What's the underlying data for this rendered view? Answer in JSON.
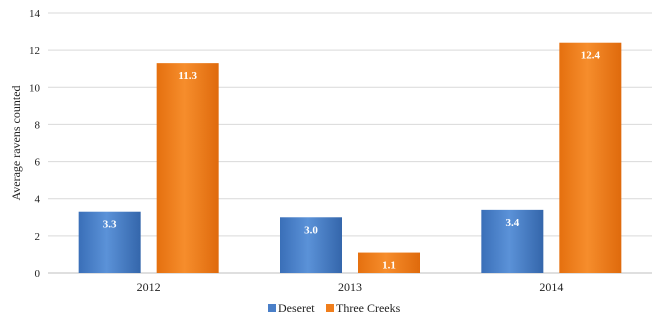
{
  "chart_data": {
    "type": "bar",
    "title": "",
    "xlabel": "",
    "ylabel": "Average ravens counted",
    "categories": [
      "2012",
      "2013",
      "2014"
    ],
    "ylim": [
      0,
      14
    ],
    "yticks": [
      "0",
      "2",
      "4",
      "6",
      "8",
      "10",
      "12",
      "14"
    ],
    "grid": true,
    "legend": "bottom",
    "series": [
      {
        "name": "Deseret",
        "values": [
          3.3,
          3.0,
          3.4
        ],
        "labels": [
          "3.3",
          "3.0",
          "3.4"
        ],
        "color": "#4a7fc8"
      },
      {
        "name": "Three Creeks",
        "values": [
          11.3,
          1.1,
          12.4
        ],
        "labels": [
          "11.3",
          "1.1",
          "12.4"
        ],
        "color": "#f07e1c"
      }
    ]
  }
}
